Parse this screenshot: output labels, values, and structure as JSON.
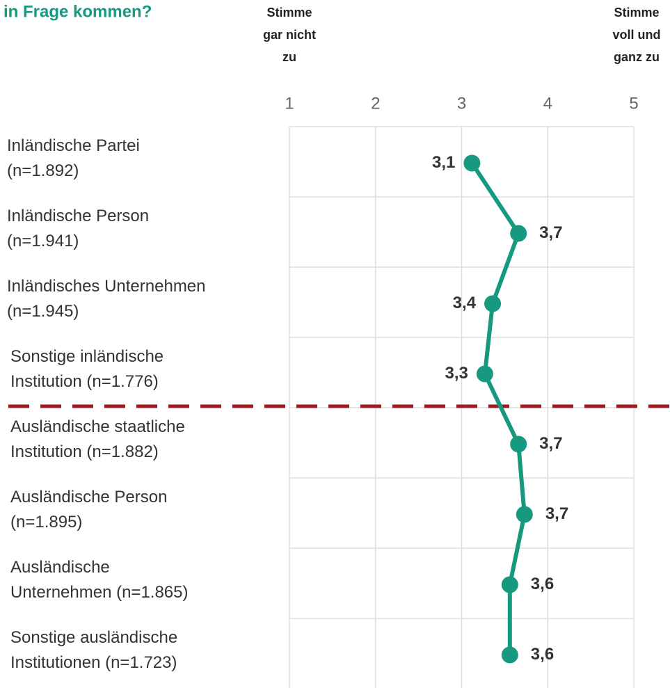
{
  "chart_data": {
    "type": "dotline",
    "title": "in Frage kommen?",
    "scale_labels": [
      [
        "Stimme",
        "gar nicht",
        "zu"
      ],
      [
        "Stimme",
        "voll und",
        "ganz zu"
      ]
    ],
    "categories": [
      [
        "Inländische Partei",
        "(n=1.892)"
      ],
      [
        "Inländische Person",
        "(n=1.941)"
      ],
      [
        "Inländisches Unternehmen",
        "(n=1.945)"
      ],
      [
        "Sonstige inländische",
        "Institution (n=1.776)"
      ],
      [
        "Ausländische staatliche",
        "Institution (n=1.882)"
      ],
      [
        "Ausländische Person",
        "(n=1.895)"
      ],
      [
        "Ausländische",
        "Unternehmen (n=1.865)"
      ],
      [
        "Sonstige ausländische",
        "Institutionen (n=1.723)"
      ]
    ],
    "values": [
      3.12,
      3.66,
      3.36,
      3.27,
      3.66,
      3.73,
      3.56,
      3.56
    ],
    "value_labels": [
      "3,1",
      "3,7",
      "3,4",
      "3,3",
      "3,7",
      "3,7",
      "3,6",
      "3,6"
    ],
    "color": "#16997f",
    "separator_color": "#a01a22",
    "xlim": [
      1,
      5
    ],
    "xticks": [
      1,
      2,
      3,
      4,
      5
    ],
    "grid": true
  }
}
